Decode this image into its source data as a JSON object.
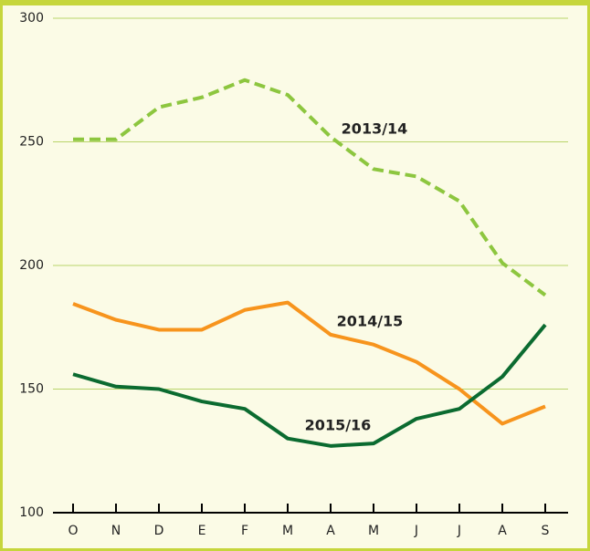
{
  "chart_data": {
    "type": "line",
    "categories": [
      "O",
      "N",
      "D",
      "E",
      "F",
      "M",
      "A",
      "M",
      "J",
      "J",
      "A",
      "S"
    ],
    "series": [
      {
        "name": "2013/14",
        "color": "#8dc63f",
        "dashed": true,
        "values": [
          251,
          251,
          264,
          268,
          275,
          269,
          252,
          239,
          236,
          226,
          201,
          188
        ]
      },
      {
        "name": "2014/15",
        "color": "#f7941d",
        "dashed": false,
        "values": [
          184.5,
          178,
          174,
          174,
          182,
          185,
          172,
          168,
          161,
          150,
          136,
          143
        ]
      },
      {
        "name": "2015/16",
        "color": "#0b6b30",
        "dashed": false,
        "values": [
          156,
          151,
          150,
          145,
          142,
          130,
          127,
          128,
          138,
          142,
          155,
          176
        ]
      }
    ],
    "ylim": [
      100,
      300
    ],
    "yticks": [
      100,
      150,
      200,
      250,
      300
    ],
    "grid": true
  }
}
